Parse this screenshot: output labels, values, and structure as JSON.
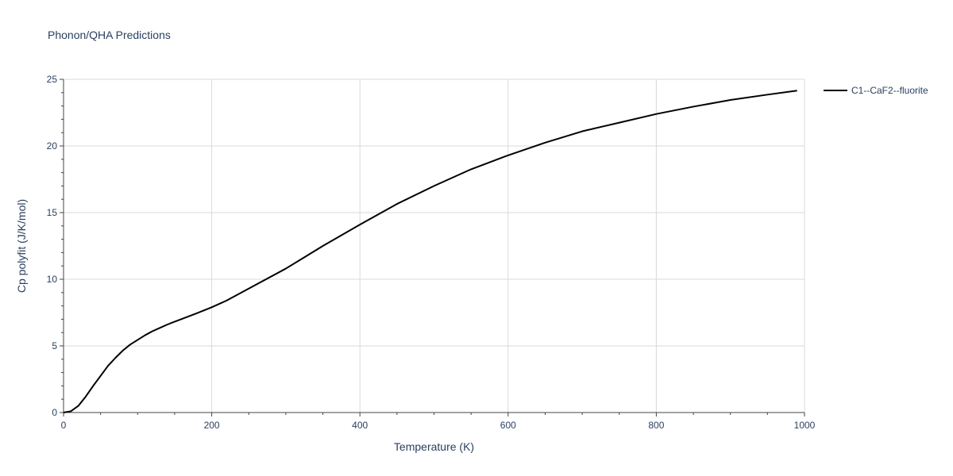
{
  "title": "Phonon/QHA Predictions",
  "colors": {
    "series": "#000000",
    "grid": "#d9d9d9",
    "axis_text": "#2a3f5f",
    "axis_line": "#444444"
  },
  "chart_data": {
    "type": "line",
    "title": "Phonon/QHA Predictions",
    "xlabel": "Temperature (K)",
    "ylabel": "Cp polyfit (J/K/mol)",
    "xlim": [
      0,
      1000
    ],
    "ylim": [
      0,
      25
    ],
    "x_ticks": [
      0,
      200,
      400,
      600,
      800,
      1000
    ],
    "x_tick_labels": [
      "0",
      "200",
      "400",
      "600",
      "800",
      "1000"
    ],
    "y_ticks": [
      0,
      5,
      10,
      15,
      20,
      25
    ],
    "y_tick_labels": [
      "0",
      "5",
      "10",
      "15",
      "20",
      "25"
    ],
    "grid": true,
    "legend_position": "top-right",
    "series": [
      {
        "name": "C1--CaF2--fluorite",
        "color": "#000000",
        "x": [
          0,
          10,
          20,
          30,
          40,
          50,
          60,
          70,
          80,
          90,
          100,
          110,
          120,
          130,
          140,
          150,
          160,
          180,
          200,
          220,
          250,
          300,
          350,
          400,
          450,
          500,
          550,
          600,
          650,
          700,
          750,
          800,
          850,
          900,
          950,
          990
        ],
        "y": [
          0,
          0.1,
          0.5,
          1.2,
          2.0,
          2.75,
          3.5,
          4.1,
          4.65,
          5.1,
          5.45,
          5.8,
          6.1,
          6.35,
          6.6,
          6.82,
          7.03,
          7.45,
          7.9,
          8.4,
          9.3,
          10.8,
          12.5,
          14.1,
          15.65,
          17.0,
          18.25,
          19.3,
          20.25,
          21.1,
          21.75,
          22.4,
          22.95,
          23.45,
          23.85,
          24.15
        ]
      }
    ]
  }
}
